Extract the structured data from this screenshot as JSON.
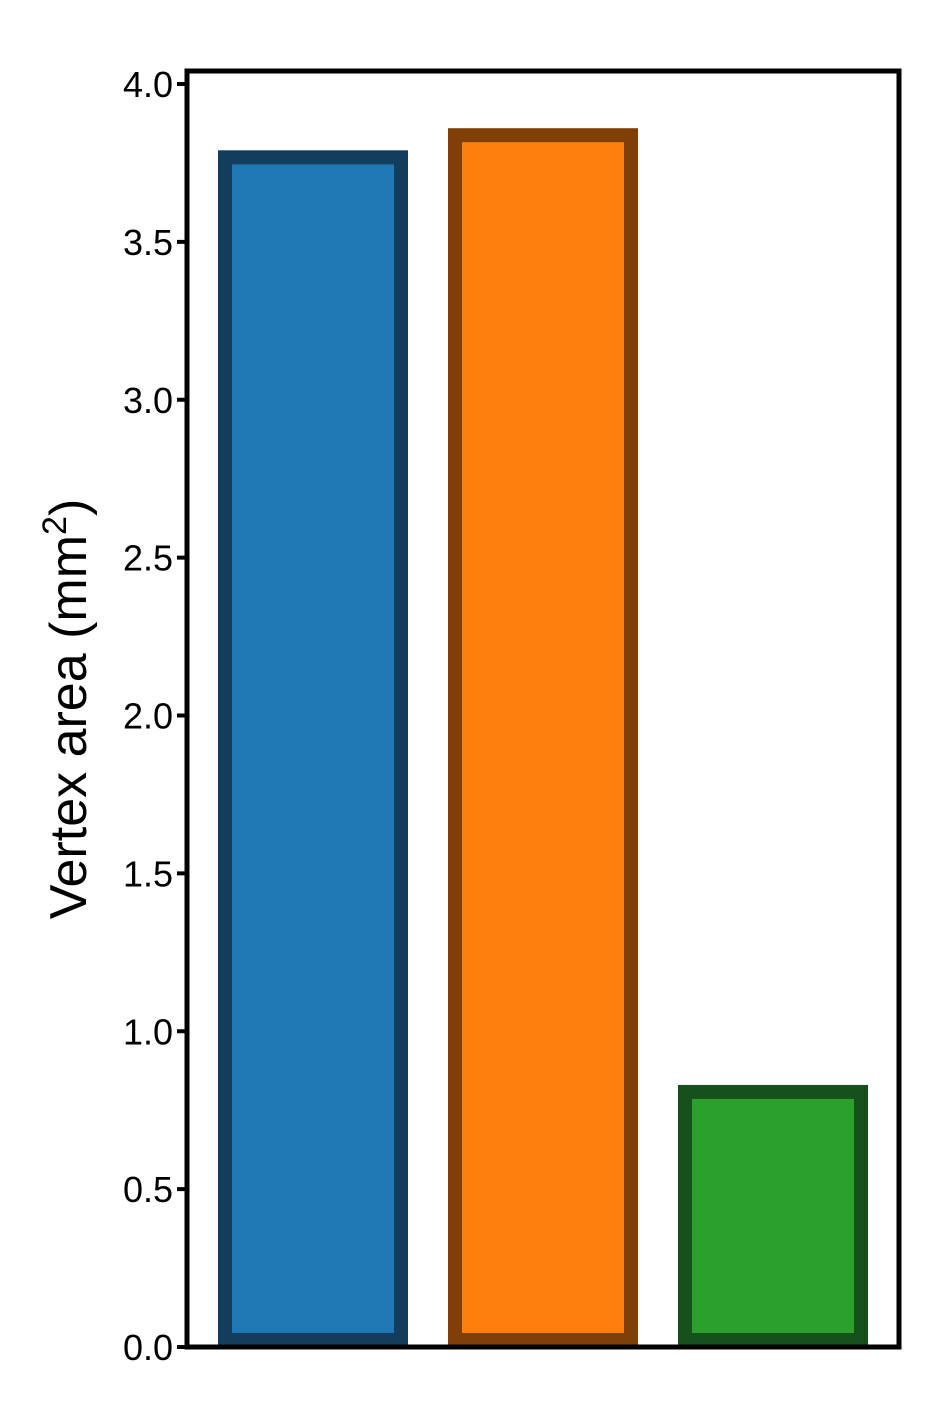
{
  "chart_data": {
    "type": "bar",
    "title": "",
    "xlabel": "",
    "ylabel": {
      "prefix": "Vertex area (mm",
      "superscript": "2",
      "suffix": ")"
    },
    "ylim": [
      0,
      4.0
    ],
    "yticks": [
      "0.0",
      "0.5",
      "1.0",
      "1.5",
      "2.0",
      "2.5",
      "3.0",
      "3.5",
      "4.0"
    ],
    "ytick_values": [
      0.0,
      0.5,
      1.0,
      1.5,
      2.0,
      2.5,
      3.0,
      3.5,
      4.0
    ],
    "categories": [
      "",
      "",
      ""
    ],
    "values": [
      3.79,
      3.86,
      0.83
    ],
    "colors": [
      "#1f77b4",
      "#ff7f0e",
      "#2ca02c"
    ],
    "edge_colors": [
      "#123d5c",
      "#7f3f07",
      "#16501b"
    ],
    "grid": false,
    "legend": "none"
  }
}
